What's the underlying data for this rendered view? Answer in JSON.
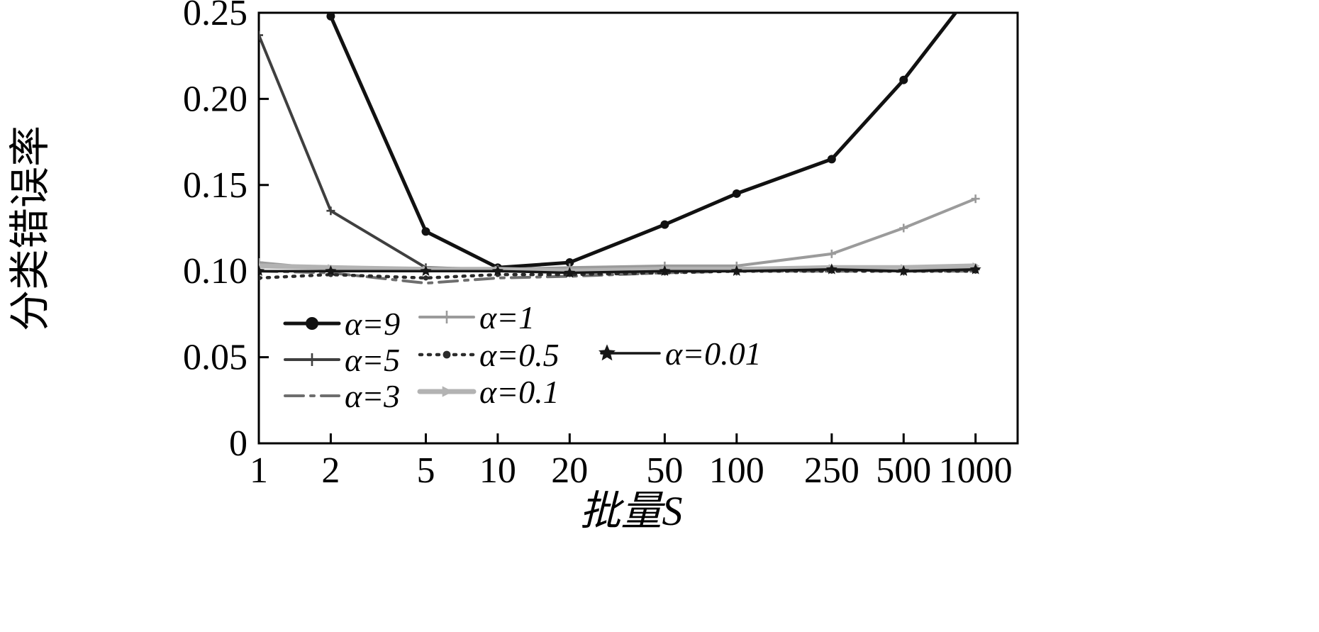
{
  "figure": {
    "background": "#ffffff",
    "axis_color": "#000000"
  },
  "chart_data": {
    "type": "line",
    "title": "",
    "xlabel": "批量S",
    "ylabel": "分类错误率",
    "xscale": "log",
    "grid": false,
    "legend_position": "lower-left-inside",
    "x": [
      1,
      2,
      5,
      10,
      20,
      50,
      100,
      250,
      500,
      1000
    ],
    "xticklabels": [
      "1",
      "2",
      "5",
      "10",
      "20",
      "50",
      "100",
      "250",
      "500",
      "1000"
    ],
    "ylim": [
      0,
      0.25
    ],
    "yticks": [
      0,
      0.05,
      0.1,
      0.15,
      0.2,
      0.25
    ],
    "yticklabels": [
      "0",
      "0.05",
      "0.10",
      "0.15",
      "0.20",
      "0.25"
    ],
    "series": [
      {
        "name": "α=9",
        "color": "#111111",
        "linestyle": "solid",
        "linewidth": 5,
        "marker": "circle",
        "values": [
          null,
          0.248,
          0.123,
          0.102,
          0.105,
          0.127,
          0.145,
          0.165,
          0.211,
          0.265
        ]
      },
      {
        "name": "α=5",
        "color": "#3f3f3f",
        "linestyle": "solid",
        "linewidth": 4,
        "marker": "plus",
        "values": [
          0.237,
          0.135,
          0.102,
          0.101,
          0.1,
          0.1,
          0.1,
          0.101,
          0.1,
          0.101
        ]
      },
      {
        "name": "α=3",
        "color": "#6e6e6e",
        "linestyle": "dashdot",
        "linewidth": 4,
        "marker": "none",
        "values": [
          0.1,
          0.099,
          0.093,
          0.096,
          0.097,
          0.099,
          0.1,
          0.1,
          0.1,
          0.1
        ]
      },
      {
        "name": "α=1",
        "color": "#9b9b9b",
        "linestyle": "solid",
        "linewidth": 4,
        "marker": "plus",
        "values": [
          0.105,
          0.101,
          0.101,
          0.101,
          0.102,
          0.103,
          0.103,
          0.11,
          0.125,
          0.142
        ]
      },
      {
        "name": "α=0.5",
        "color": "#2b2b2b",
        "linestyle": "dotted",
        "linewidth": 4.5,
        "marker": "dot",
        "values": [
          0.096,
          0.098,
          0.096,
          0.098,
          0.098,
          0.099,
          0.1,
          0.1,
          0.1,
          0.1
        ]
      },
      {
        "name": "α=0.1",
        "color": "#b3b3b3",
        "linestyle": "solid",
        "linewidth": 7,
        "marker": "triangle-right",
        "values": [
          0.103,
          0.102,
          0.101,
          0.101,
          0.1,
          0.101,
          0.101,
          0.102,
          0.102,
          0.103
        ]
      },
      {
        "name": "α=0.01",
        "color": "#161616",
        "linestyle": "solid",
        "linewidth": 3.5,
        "marker": "star",
        "values": [
          0.1,
          0.1,
          0.1,
          0.1,
          0.099,
          0.1,
          0.1,
          0.101,
          0.1,
          0.101
        ]
      }
    ]
  }
}
